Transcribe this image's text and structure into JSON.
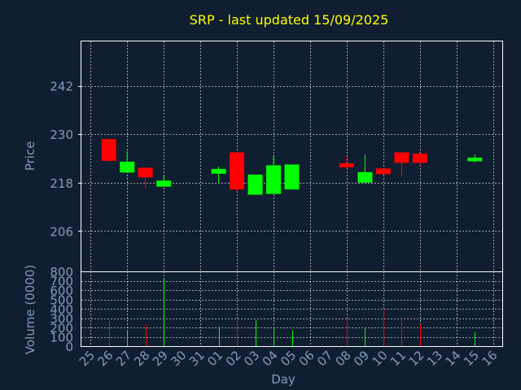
{
  "colors": {
    "background": "#0f1e30",
    "frame": "#ffffff",
    "grid": "#ffffff",
    "title": "#ffff00",
    "axis_text": "#7f9cbf",
    "up": "#00ff00",
    "down": "#ff0000"
  },
  "chart_data": [
    {
      "type": "candlestick",
      "title": "SRP - last updated 15/09/2025",
      "ylabel": "Price",
      "ylim": [
        196,
        253
      ],
      "yticks": [
        206,
        218,
        230,
        242
      ],
      "grid": true,
      "x": [
        "25",
        "26",
        "27",
        "28",
        "29",
        "30",
        "31",
        "01",
        "02",
        "03",
        "04",
        "05",
        "06",
        "07",
        "08",
        "09",
        "10",
        "11",
        "12",
        "13",
        "14",
        "15",
        "16"
      ],
      "candles": [
        {
          "day": "26",
          "open": 228.8,
          "close": 223.4,
          "high": 228.8,
          "low": 223.4
        },
        {
          "day": "27",
          "open": 220.5,
          "close": 223.2,
          "high": 225.8,
          "low": 220.5
        },
        {
          "day": "28",
          "open": 221.7,
          "close": 219.3,
          "high": 221.7,
          "low": 216.5
        },
        {
          "day": "29",
          "open": 217.0,
          "close": 218.5,
          "high": 219.8,
          "low": 217.0
        },
        {
          "day": "01",
          "open": 220.2,
          "close": 221.4,
          "high": 222.0,
          "low": 218.0
        },
        {
          "day": "02",
          "open": 225.5,
          "close": 216.3,
          "high": 225.5,
          "low": 215.8
        },
        {
          "day": "03",
          "open": 215.0,
          "close": 220.0,
          "high": 220.0,
          "low": 215.0
        },
        {
          "day": "04",
          "open": 215.2,
          "close": 222.3,
          "high": 224.7,
          "low": 215.2
        },
        {
          "day": "05",
          "open": 216.3,
          "close": 222.5,
          "high": 222.5,
          "low": 216.3
        },
        {
          "day": "08",
          "open": 222.8,
          "close": 221.8,
          "high": 224.5,
          "low": 221.3
        },
        {
          "day": "09",
          "open": 218.0,
          "close": 220.6,
          "high": 225.0,
          "low": 218.0
        },
        {
          "day": "10",
          "open": 221.5,
          "close": 220.1,
          "high": 221.5,
          "low": 219.8
        },
        {
          "day": "11",
          "open": 225.5,
          "close": 222.9,
          "high": 225.5,
          "low": 219.5
        },
        {
          "day": "12",
          "open": 225.2,
          "close": 222.9,
          "high": 226.0,
          "low": 222.4
        },
        {
          "day": "15",
          "open": 223.3,
          "close": 224.2,
          "high": 225.0,
          "low": 223.0
        }
      ]
    },
    {
      "type": "bar",
      "ylabel": "Volume (0000)",
      "xlabel": "Day",
      "ylim": [
        0,
        800
      ],
      "yticks": [
        0,
        100,
        200,
        300,
        400,
        500,
        600,
        700,
        800
      ],
      "grid": true,
      "x": [
        "25",
        "26",
        "27",
        "28",
        "29",
        "30",
        "31",
        "01",
        "02",
        "03",
        "04",
        "05",
        "06",
        "07",
        "08",
        "09",
        "10",
        "11",
        "12",
        "13",
        "14",
        "15",
        "16"
      ],
      "bars": [
        {
          "day": "26",
          "value": 280,
          "direction": "down"
        },
        {
          "day": "27",
          "value": 170,
          "direction": "up"
        },
        {
          "day": "28",
          "value": 230,
          "direction": "down"
        },
        {
          "day": "29",
          "value": 720,
          "direction": "up"
        },
        {
          "day": "01",
          "value": 210,
          "direction": "up"
        },
        {
          "day": "02",
          "value": 280,
          "direction": "down"
        },
        {
          "day": "03",
          "value": 280,
          "direction": "up"
        },
        {
          "day": "04",
          "value": 200,
          "direction": "up"
        },
        {
          "day": "05",
          "value": 170,
          "direction": "up"
        },
        {
          "day": "08",
          "value": 300,
          "direction": "down"
        },
        {
          "day": "09",
          "value": 190,
          "direction": "up"
        },
        {
          "day": "10",
          "value": 390,
          "direction": "down"
        },
        {
          "day": "11",
          "value": 310,
          "direction": "down"
        },
        {
          "day": "12",
          "value": 230,
          "direction": "down"
        },
        {
          "day": "15",
          "value": 150,
          "direction": "up"
        }
      ]
    }
  ]
}
